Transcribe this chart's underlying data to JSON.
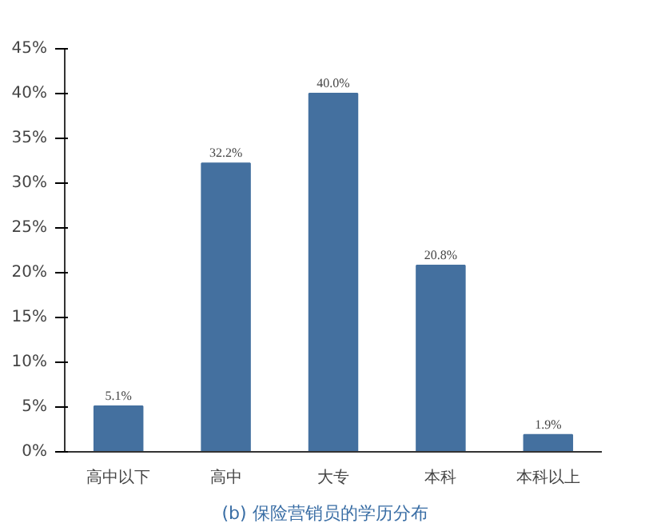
{
  "chart_data": {
    "type": "bar",
    "title": "(b)    保险营销员的学历分布",
    "categories": [
      "高中以下",
      "高中",
      "大专",
      "本科",
      "本科以上"
    ],
    "values": [
      5.1,
      32.2,
      40.0,
      20.8,
      1.9
    ],
    "value_labels": [
      "5.1%",
      "32.2%",
      "40.0%",
      "20.8%",
      "1.9%"
    ],
    "color": "#44709f",
    "ylim": [
      0,
      45
    ],
    "yticks": [
      {
        "value": 0,
        "label": "0%"
      },
      {
        "value": 5,
        "label": "5%"
      },
      {
        "value": 10,
        "label": "10%"
      },
      {
        "value": 15,
        "label": "15%"
      },
      {
        "value": 20,
        "label": "20%"
      },
      {
        "value": 25,
        "label": "25%"
      },
      {
        "value": 30,
        "label": "30%"
      },
      {
        "value": 35,
        "label": "35%"
      },
      {
        "value": 40,
        "label": "40%"
      },
      {
        "value": 45,
        "label": "45%"
      }
    ],
    "grid": false
  }
}
